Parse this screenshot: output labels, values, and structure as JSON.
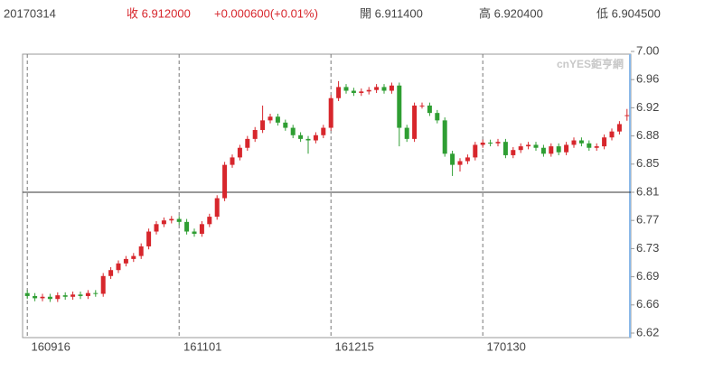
{
  "header": {
    "date": "20170314",
    "close": "收 6.912000",
    "change": "+0.000600(+0.01%)",
    "open": "開 6.911400",
    "high": "高 6.920400",
    "low": "低 6.904500"
  },
  "chart_data": {
    "type": "candlestick",
    "watermark": "cnYES鉅亨網",
    "categories": [
      "160916",
      null,
      null,
      null,
      null,
      null,
      null,
      null,
      null,
      null,
      null,
      null,
      null,
      null,
      null,
      null,
      null,
      null,
      null,
      null,
      "161101",
      null,
      null,
      null,
      null,
      null,
      null,
      null,
      null,
      null,
      null,
      null,
      null,
      null,
      null,
      null,
      null,
      null,
      null,
      null,
      "161215",
      null,
      null,
      null,
      null,
      null,
      null,
      null,
      null,
      null,
      null,
      null,
      null,
      null,
      null,
      null,
      null,
      null,
      null,
      null,
      "170130",
      null,
      null,
      null,
      null,
      null,
      null,
      null,
      null,
      null,
      null,
      null,
      null,
      null,
      null,
      null,
      null,
      null,
      null,
      null
    ],
    "open": [
      6.672,
      6.668,
      6.665,
      6.667,
      6.664,
      6.669,
      6.667,
      6.67,
      6.668,
      6.672,
      6.671,
      6.695,
      6.703,
      6.712,
      6.718,
      6.722,
      6.735,
      6.755,
      6.765,
      6.77,
      6.772,
      6.768,
      6.755,
      6.752,
      6.765,
      6.775,
      6.8,
      6.845,
      6.855,
      6.868,
      6.88,
      6.892,
      6.905,
      6.91,
      6.902,
      6.895,
      6.885,
      6.88,
      6.878,
      6.885,
      6.895,
      6.935,
      6.95,
      6.945,
      6.942,
      6.944,
      6.946,
      6.95,
      6.945,
      6.952,
      6.895,
      6.88,
      6.925,
      6.925,
      6.915,
      6.905,
      6.86,
      6.845,
      6.85,
      6.855,
      6.872,
      6.875,
      6.874,
      6.876,
      6.858,
      6.865,
      6.87,
      6.872,
      6.868,
      6.86,
      6.87,
      6.862,
      6.872,
      6.878,
      6.874,
      6.868,
      6.87,
      6.882,
      6.89,
      6.9114
    ],
    "high": [
      6.676,
      6.672,
      6.671,
      6.671,
      6.673,
      6.673,
      6.674,
      6.674,
      6.676,
      6.676,
      6.699,
      6.707,
      6.716,
      6.722,
      6.726,
      6.739,
      6.759,
      6.769,
      6.774,
      6.776,
      6.776,
      6.772,
      6.759,
      6.769,
      6.779,
      6.804,
      6.849,
      6.859,
      6.872,
      6.884,
      6.896,
      6.925,
      6.914,
      6.914,
      6.906,
      6.899,
      6.889,
      6.884,
      6.889,
      6.899,
      6.939,
      6.958,
      6.954,
      6.949,
      6.948,
      6.95,
      6.954,
      6.954,
      6.956,
      6.956,
      6.899,
      6.929,
      6.929,
      6.929,
      6.919,
      6.909,
      6.864,
      6.854,
      6.859,
      6.876,
      6.879,
      6.879,
      6.88,
      6.88,
      6.869,
      6.874,
      6.876,
      6.876,
      6.872,
      6.874,
      6.874,
      6.876,
      6.882,
      6.882,
      6.878,
      6.874,
      6.886,
      6.894,
      6.904,
      6.9204
    ],
    "low": [
      6.664,
      6.661,
      6.661,
      6.66,
      6.66,
      6.663,
      6.663,
      6.664,
      6.664,
      6.667,
      6.667,
      6.691,
      6.699,
      6.708,
      6.714,
      6.718,
      6.731,
      6.751,
      6.761,
      6.766,
      6.764,
      6.751,
      6.748,
      6.748,
      6.761,
      6.771,
      6.796,
      6.841,
      6.851,
      6.864,
      6.876,
      6.888,
      6.901,
      6.898,
      6.891,
      6.881,
      6.876,
      6.86,
      6.874,
      6.881,
      6.891,
      6.931,
      6.941,
      6.938,
      6.938,
      6.94,
      6.942,
      6.941,
      6.941,
      6.87,
      6.876,
      6.876,
      6.921,
      6.911,
      6.901,
      6.856,
      6.83,
      6.836,
      6.846,
      6.851,
      6.868,
      6.87,
      6.87,
      6.854,
      6.854,
      6.861,
      6.866,
      6.864,
      6.856,
      6.856,
      6.858,
      6.858,
      6.868,
      6.87,
      6.864,
      6.864,
      6.866,
      6.878,
      6.886,
      6.9045
    ],
    "close": [
      6.668,
      6.665,
      6.667,
      6.664,
      6.669,
      6.667,
      6.67,
      6.668,
      6.672,
      6.671,
      6.695,
      6.703,
      6.712,
      6.718,
      6.722,
      6.735,
      6.755,
      6.765,
      6.77,
      6.772,
      6.768,
      6.755,
      6.752,
      6.765,
      6.775,
      6.8,
      6.845,
      6.855,
      6.868,
      6.88,
      6.892,
      6.905,
      6.91,
      6.902,
      6.895,
      6.885,
      6.88,
      6.878,
      6.885,
      6.895,
      6.935,
      6.95,
      6.945,
      6.942,
      6.944,
      6.946,
      6.95,
      6.945,
      6.952,
      6.895,
      6.88,
      6.925,
      6.925,
      6.915,
      6.905,
      6.86,
      6.845,
      6.85,
      6.855,
      6.872,
      6.875,
      6.874,
      6.876,
      6.858,
      6.865,
      6.87,
      6.872,
      6.868,
      6.86,
      6.87,
      6.862,
      6.872,
      6.878,
      6.874,
      6.868,
      6.87,
      6.882,
      6.89,
      6.9,
      6.912
    ],
    "up_color": "#d7262c",
    "down_color": "#2f9e33",
    "ylim": [
      6.618,
      6.998
    ],
    "yticks": [
      {
        "value": 6.618,
        "label": "6.62"
      },
      {
        "value": 6.656,
        "label": "6.66"
      },
      {
        "value": 6.694,
        "label": "6.69"
      },
      {
        "value": 6.732,
        "label": "6.73"
      },
      {
        "value": 6.77,
        "label": "6.77"
      },
      {
        "value": 6.808,
        "label": "6.81"
      },
      {
        "value": 6.846,
        "label": "6.85"
      },
      {
        "value": 6.884,
        "label": "6.88"
      },
      {
        "value": 6.922,
        "label": "6.92"
      },
      {
        "value": 6.96,
        "label": "6.96"
      },
      {
        "value": 6.998,
        "label": "7.00"
      }
    ],
    "reference_line": 6.808
  }
}
